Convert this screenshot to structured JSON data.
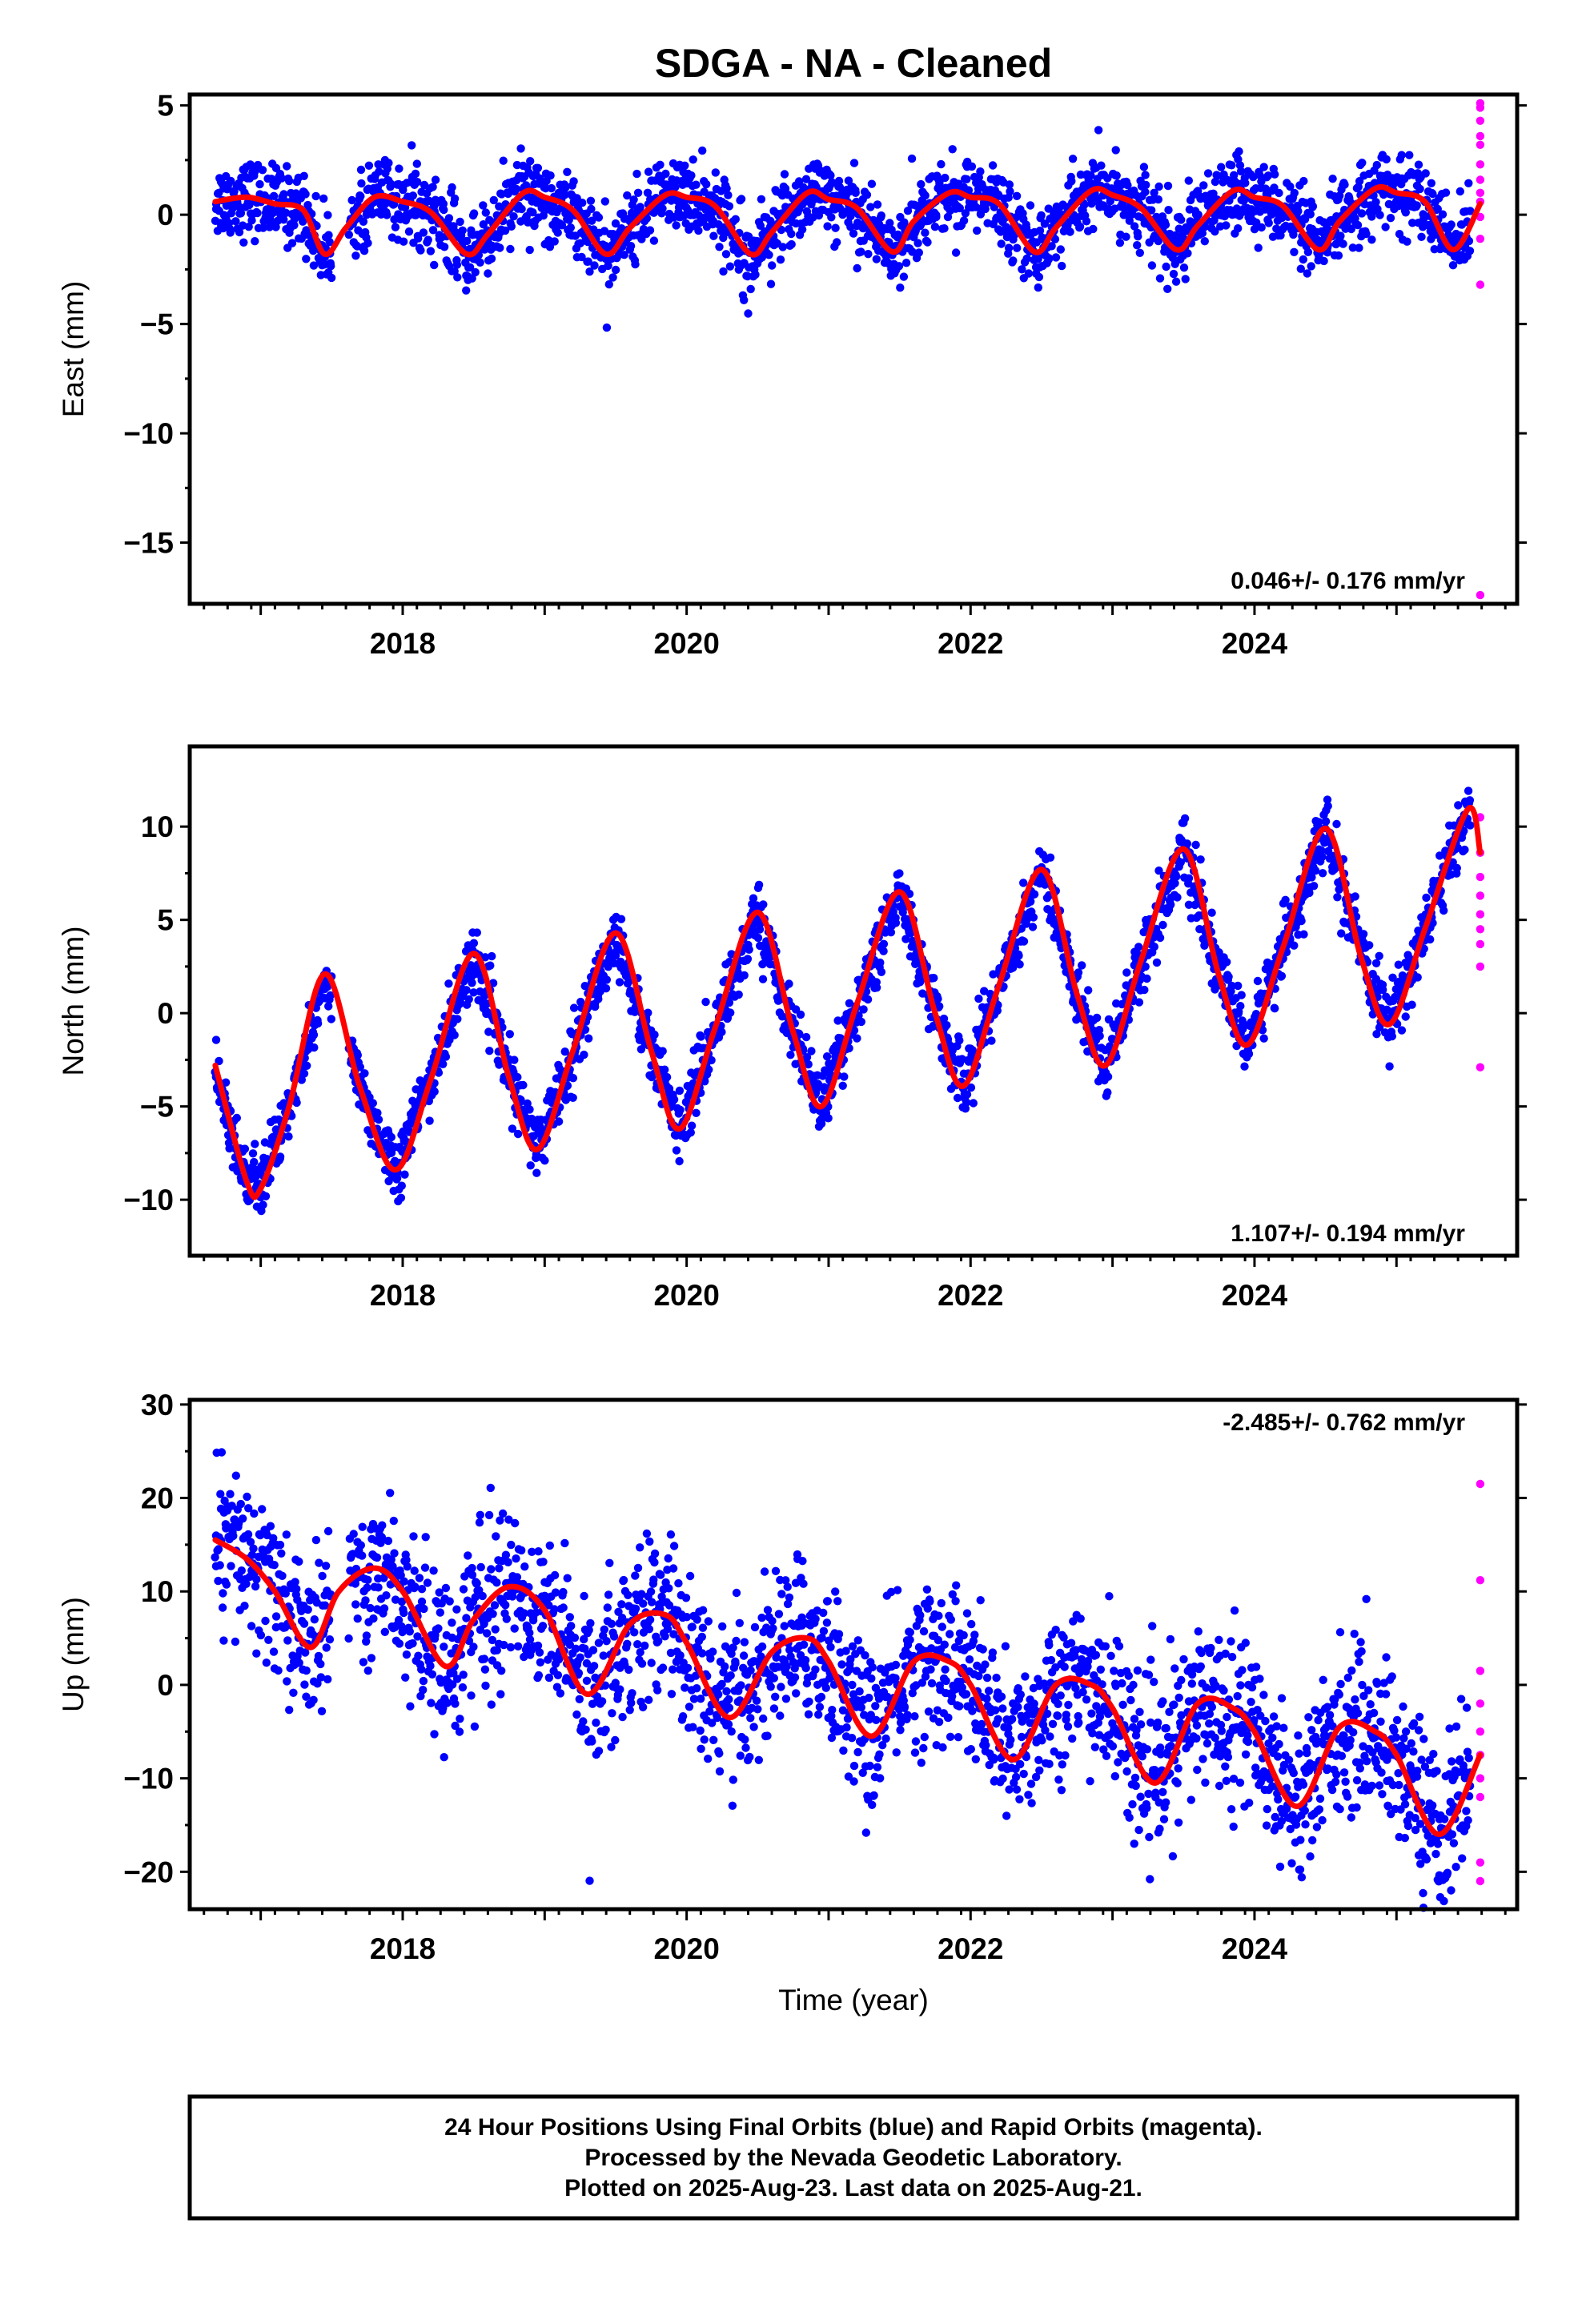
{
  "colors": {
    "final": "#0000ff",
    "rapid": "#ff00ff",
    "model": "#ff0000",
    "frame": "#000000"
  },
  "chart_data": [
    {
      "type": "scatter",
      "title": "SDGA  - NA - Cleaned",
      "ylabel": "East (mm)",
      "xlim": [
        2016.5,
        2025.85
      ],
      "ylim": [
        -17.8,
        5.5
      ],
      "yticks": [
        5,
        0,
        -5,
        -10,
        -15
      ],
      "yticklabels": [
        "5",
        "0",
        "−5",
        "−10",
        "−15"
      ],
      "xticks": [
        2018,
        2020,
        2022,
        2024
      ],
      "xticklabels": [
        "2018",
        "2020",
        "2022",
        "2024"
      ],
      "rate_text": "0.046+/- 0.176 mm/yr",
      "rate_position": "bottom-right",
      "grid": false,
      "series": [
        {
          "kind": "final_orbits",
          "x_start": 2016.68,
          "x_end": 2025.52,
          "mean": 0.0,
          "trend_mm_per_yr": 0.046,
          "annual_amplitude": 1.35,
          "scatter": 1.0
        },
        {
          "kind": "rapid_orbits",
          "x": [
            2025.59,
            2025.59,
            2025.59,
            2025.59,
            2025.59,
            2025.59,
            2025.59,
            2025.59,
            2025.59,
            2025.59,
            2025.59,
            2025.59,
            2025.59
          ],
          "y": [
            5.1,
            4.9,
            4.3,
            3.6,
            3.2,
            2.3,
            1.6,
            1.0,
            0.6,
            -0.1,
            -1.1,
            -3.2,
            -17.4
          ]
        },
        {
          "kind": "model",
          "x": [
            2016.68,
            2016.9,
            2017.1,
            2017.3,
            2017.45,
            2017.6,
            2017.8,
            2018.0,
            2018.2,
            2018.45,
            2018.6,
            2018.85,
            2019.0,
            2019.2,
            2019.43,
            2019.6,
            2019.85,
            2020.0,
            2020.2,
            2020.45,
            2020.6,
            2020.85,
            2021.0,
            2021.2,
            2021.45,
            2021.6,
            2021.85,
            2022.0,
            2022.2,
            2022.45,
            2022.6,
            2022.85,
            2023.0,
            2023.2,
            2023.45,
            2023.6,
            2023.85,
            2024.0,
            2024.2,
            2024.45,
            2024.6,
            2024.85,
            2025.0,
            2025.2,
            2025.4,
            2025.59
          ],
          "y": [
            0.6,
            0.8,
            0.5,
            0.2,
            -1.8,
            -0.6,
            0.8,
            0.6,
            0.1,
            -1.8,
            -0.9,
            1.0,
            0.8,
            0.2,
            -1.8,
            -0.6,
            0.9,
            0.8,
            0.4,
            -1.8,
            -0.8,
            1.0,
            0.7,
            0.3,
            -1.7,
            -0.3,
            1.0,
            0.8,
            0.5,
            -1.7,
            -0.6,
            1.1,
            0.9,
            0.3,
            -1.6,
            -0.5,
            1.1,
            0.8,
            0.4,
            -1.6,
            -0.3,
            1.2,
            1.0,
            0.6,
            -1.6,
            0.5
          ]
        }
      ]
    },
    {
      "type": "scatter",
      "ylabel": "North (mm)",
      "xlim": [
        2016.5,
        2025.85
      ],
      "ylim": [
        -13.0,
        14.3
      ],
      "yticks": [
        10,
        5,
        0,
        -5,
        -10
      ],
      "yticklabels": [
        "10",
        "5",
        "0",
        "−5",
        "−10"
      ],
      "xticks": [
        2018,
        2020,
        2022,
        2024
      ],
      "xticklabels": [
        "2018",
        "2020",
        "2022",
        "2024"
      ],
      "rate_text": "1.107+/- 0.194 mm/yr",
      "rate_position": "bottom-right",
      "grid": false,
      "series": [
        {
          "kind": "final_orbits",
          "x_start": 2016.68,
          "x_end": 2025.52,
          "mean": -1.5,
          "trend_mm_per_yr": 1.107,
          "annual_amplitude": 6.0,
          "scatter": 1.0
        },
        {
          "kind": "rapid_orbits",
          "x": [
            2025.59,
            2025.59,
            2025.59,
            2025.59,
            2025.59,
            2025.59,
            2025.59,
            2025.59,
            2025.59
          ],
          "y": [
            10.5,
            8.6,
            7.3,
            6.3,
            5.3,
            4.5,
            3.7,
            2.5,
            -2.9
          ]
        },
        {
          "kind": "model",
          "x": [
            2016.68,
            2016.9,
            2017.0,
            2017.2,
            2017.45,
            2017.7,
            2017.95,
            2018.2,
            2018.5,
            2018.75,
            2018.95,
            2019.2,
            2019.5,
            2019.75,
            2019.95,
            2020.2,
            2020.5,
            2020.75,
            2020.95,
            2021.2,
            2021.5,
            2021.75,
            2021.95,
            2022.2,
            2022.5,
            2022.75,
            2022.95,
            2023.2,
            2023.5,
            2023.75,
            2023.95,
            2024.2,
            2024.5,
            2024.75,
            2024.95,
            2025.2,
            2025.5,
            2025.59
          ],
          "y": [
            -2.8,
            -9.0,
            -9.4,
            -5.0,
            2.1,
            -4.0,
            -8.4,
            -3.5,
            3.2,
            -3.5,
            -7.3,
            -2.0,
            4.3,
            -2.0,
            -6.2,
            -0.8,
            5.4,
            -1.0,
            -5.0,
            0.5,
            6.5,
            0.0,
            -3.9,
            1.5,
            7.7,
            1.0,
            -2.8,
            2.8,
            8.8,
            2.0,
            -1.7,
            3.5,
            9.9,
            3.0,
            -0.6,
            4.5,
            10.9,
            8.6
          ]
        }
      ]
    },
    {
      "type": "scatter",
      "ylabel": "Up (mm)",
      "xlabel": "Time (year)",
      "xlim": [
        2016.5,
        2025.85
      ],
      "ylim": [
        -24.0,
        30.5
      ],
      "yticks": [
        30,
        20,
        10,
        0,
        -10,
        -20
      ],
      "yticklabels": [
        "30",
        "20",
        "10",
        "0",
        "−10",
        "−20"
      ],
      "xticks": [
        2018,
        2020,
        2022,
        2024
      ],
      "xticklabels": [
        "2018",
        "2020",
        "2022",
        "2024"
      ],
      "rate_text": "-2.485+/- 0.762 mm/yr",
      "rate_position": "top-right",
      "grid": false,
      "series": [
        {
          "kind": "final_orbits",
          "x_start": 2016.68,
          "x_end": 2025.52,
          "mean": 0.0,
          "trend_mm_per_yr": -2.485,
          "annual_amplitude": 4.5,
          "scatter": 5.0
        },
        {
          "kind": "rapid_orbits",
          "x": [
            2025.59,
            2025.59,
            2025.59,
            2025.59,
            2025.59,
            2025.59,
            2025.59,
            2025.59,
            2025.59,
            2025.59
          ],
          "y": [
            21.5,
            11.2,
            1.5,
            -2.0,
            -5.0,
            -7.5,
            -10.0,
            -12.0,
            -19.0,
            -21.0
          ]
        },
        {
          "kind": "model",
          "x": [
            2016.68,
            2016.9,
            2017.1,
            2017.35,
            2017.55,
            2017.8,
            2018.0,
            2018.3,
            2018.5,
            2018.75,
            2019.0,
            2019.3,
            2019.6,
            2019.85,
            2020.0,
            2020.3,
            2020.6,
            2020.85,
            2021.0,
            2021.3,
            2021.6,
            2021.85,
            2022.0,
            2022.3,
            2022.6,
            2022.85,
            2023.0,
            2023.3,
            2023.6,
            2023.85,
            2024.0,
            2024.3,
            2024.6,
            2024.85,
            2025.0,
            2025.3,
            2025.59
          ],
          "y": [
            15.5,
            13.5,
            10.0,
            4.0,
            10.0,
            12.5,
            10.0,
            2.0,
            7.0,
            10.5,
            8.0,
            -1.0,
            6.5,
            7.5,
            4.5,
            -3.5,
            3.5,
            5.0,
            2.5,
            -5.5,
            2.5,
            2.5,
            0.0,
            -8.0,
            0.0,
            0.0,
            -2.5,
            -10.5,
            -2.0,
            -2.5,
            -5.0,
            -13.0,
            -4.5,
            -5.0,
            -7.5,
            -16.0,
            -7.5
          ]
        }
      ]
    }
  ],
  "footer": {
    "line1": "24 Hour Positions Using Final Orbits (blue) and Rapid Orbits (magenta).",
    "line2": "Processed by the Nevada Geodetic Laboratory.",
    "line3": "Plotted on 2025-Aug-23. Last data on 2025-Aug-21."
  }
}
